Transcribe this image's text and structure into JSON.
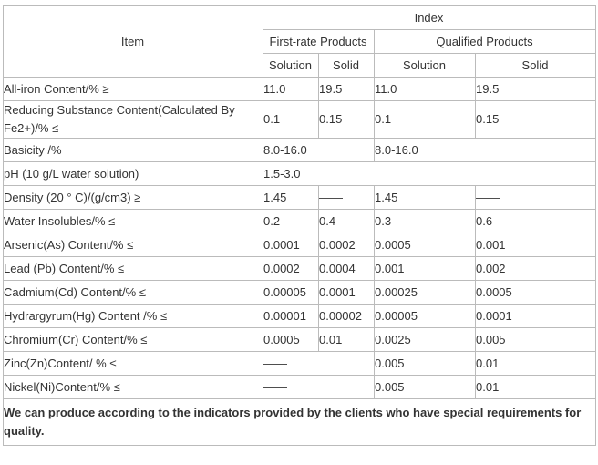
{
  "header": {
    "item": "Item",
    "index": "Index",
    "first_rate": "First-rate Products",
    "qualified": "Qualified Products",
    "subheads": [
      "Solution",
      "Solid",
      "Solution",
      "Solid"
    ]
  },
  "rows": [
    {
      "item": "All-iron Content/% ≥",
      "cells": [
        "11.0",
        "19.5",
        "11.0",
        "19.5"
      ]
    },
    {
      "item": "Reducing Substance Content(Calculated By Fe2+)/% ≤",
      "cells": [
        "0.1",
        "0.15",
        "0.1",
        "0.15"
      ]
    },
    {
      "item": "Basicity /%",
      "cells": [
        "8.0-16.0",
        "8.0-16.0"
      ]
    },
    {
      "item": "pH (10 g/L water solution)",
      "cells": [
        "1.5-3.0"
      ]
    },
    {
      "item": "Density (20 ° C)/(g/cm3) ≥",
      "cells": [
        "1.45",
        "——",
        "1.45",
        "——"
      ]
    },
    {
      "item": "Water Insolubles/% ≤",
      "cells": [
        "0.2",
        "0.4",
        "0.3",
        "0.6"
      ]
    },
    {
      "item": "Arsenic(As) Content/% ≤",
      "cells": [
        "0.0001",
        "0.0002",
        "0.0005",
        "0.001"
      ]
    },
    {
      "item": "Lead (Pb) Content/% ≤",
      "cells": [
        "0.0002",
        "0.0004",
        "0.001",
        "0.002"
      ]
    },
    {
      "item": "Cadmium(Cd) Content/% ≤",
      "cells": [
        "0.00005",
        "0.0001",
        "0.00025",
        "0.0005"
      ]
    },
    {
      "item": "Hydrargyrum(Hg) Content /% ≤",
      "cells": [
        "0.00001",
        "0.00002",
        "0.00005",
        "0.0001"
      ]
    },
    {
      "item": "Chromium(Cr) Content/% ≤",
      "cells": [
        "0.0005",
        "0.01",
        "0.0025",
        "0.005"
      ]
    },
    {
      "item": "Zinc(Zn)Content/ % ≤",
      "cells": [
        "——",
        "0.005",
        "0.01"
      ]
    },
    {
      "item": "Nickel(Ni)Content/% ≤",
      "cells": [
        "——",
        "0.005",
        "0.01"
      ]
    }
  ],
  "footer": "We can produce according to the indicators provided by the clients who have special requirements for quality."
}
